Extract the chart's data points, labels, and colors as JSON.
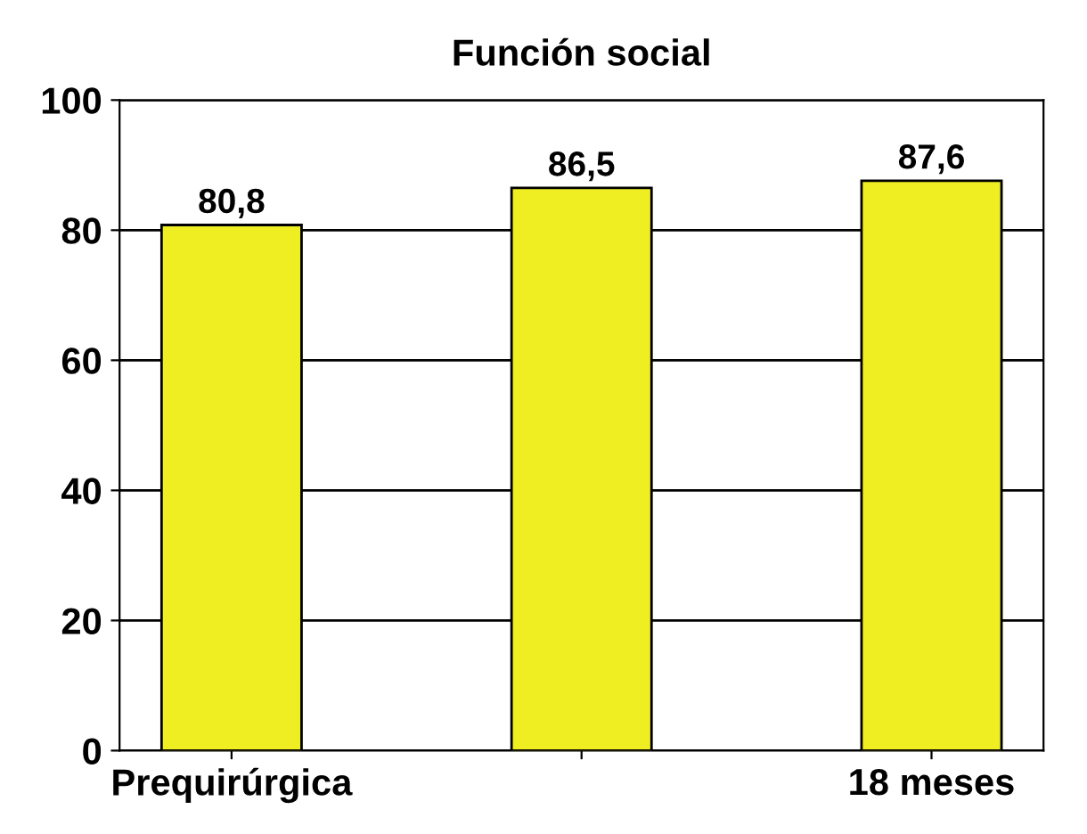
{
  "chart_data": {
    "type": "bar",
    "title": "Función social",
    "categories": [
      "Prequirúrgica",
      null,
      "18 meses"
    ],
    "values": [
      80.8,
      86.5,
      87.6
    ],
    "value_labels": [
      "80,8",
      "86,5",
      "87,6"
    ],
    "color": "#eeee22",
    "ylim": [
      0,
      100
    ],
    "yticks": [
      0,
      20,
      40,
      60,
      80,
      100
    ],
    "grid": "y"
  }
}
